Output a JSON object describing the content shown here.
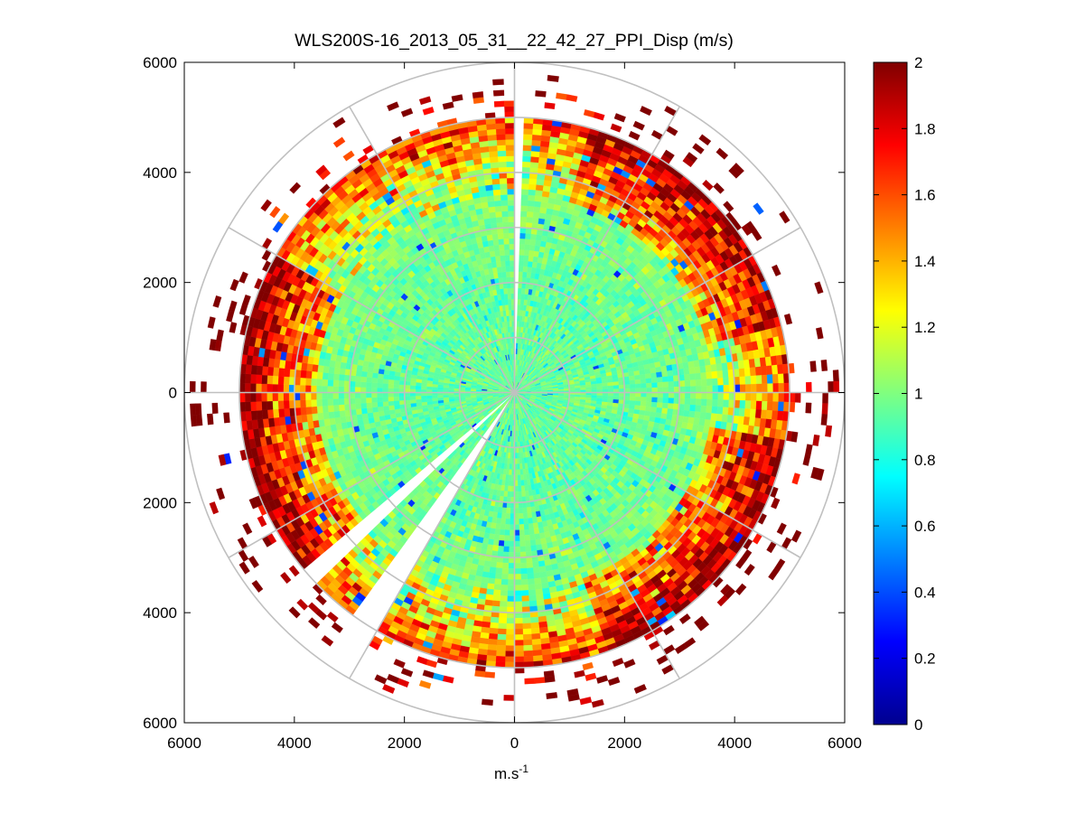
{
  "chart_data": {
    "type": "heatmap",
    "subtype": "polar PPI scan",
    "title": "WLS200S-16_2013_05_31__22_42_27_PPI_Disp (m/s)",
    "xlabel": "m.s",
    "xlabel_superscript": "-1",
    "ylabel": "",
    "xlim": [
      -6000,
      6000
    ],
    "ylim": [
      -6000,
      6000
    ],
    "x_ticks": [
      -6000,
      -4000,
      -2000,
      0,
      2000,
      4000,
      6000
    ],
    "y_ticks": [
      -6000,
      -4000,
      -2000,
      0,
      2000,
      4000,
      6000
    ],
    "x_tick_labels": [
      "6000",
      "4000",
      "2000",
      "0",
      "2000",
      "4000",
      "6000"
    ],
    "y_tick_labels": [
      "6000",
      "4000",
      "2000",
      "0",
      "2000",
      "4000",
      "6000"
    ],
    "polar_grid": {
      "ring_radii_m": [
        1000,
        2000,
        3000,
        4000,
        5000,
        6000
      ],
      "spoke_angles_deg": [
        0,
        30,
        60,
        90,
        120,
        150,
        180,
        210,
        240,
        270,
        300,
        330
      ]
    },
    "scan": {
      "max_range_m": 5900,
      "range_gate_m": 100,
      "dense_range_m": 4900,
      "azimuth_step_deg": 2,
      "gaps_azimuth_deg": [
        [
          0,
          2
        ],
        [
          210,
          216
        ],
        [
          226,
          230
        ]
      ],
      "value_profile": [
        {
          "range_m": 0,
          "typical": 0.95
        },
        {
          "range_m": 2000,
          "typical": 0.95
        },
        {
          "range_m": 3500,
          "typical": 1.0
        },
        {
          "range_m": 4500,
          "typical": 1.4
        },
        {
          "range_m": 5500,
          "typical": 2.0
        }
      ],
      "high_value_sectors_deg": [
        [
          15,
          75
        ],
        [
          100,
          160
        ],
        [
          230,
          300
        ]
      ]
    },
    "colorbar": {
      "colormap": "jet",
      "range": [
        0,
        2
      ],
      "ticks": [
        0,
        0.2,
        0.4,
        0.6,
        0.8,
        1,
        1.2,
        1.4,
        1.6,
        1.8,
        2
      ],
      "tick_labels": [
        "0",
        "0.2",
        "0.4",
        "0.6",
        "0.8",
        "1",
        "1.2",
        "1.4",
        "1.6",
        "1.8",
        "2"
      ],
      "colors": [
        "#00008f",
        "#0000ff",
        "#00ffff",
        "#ffff00",
        "#ff0000",
        "#800000"
      ]
    }
  }
}
